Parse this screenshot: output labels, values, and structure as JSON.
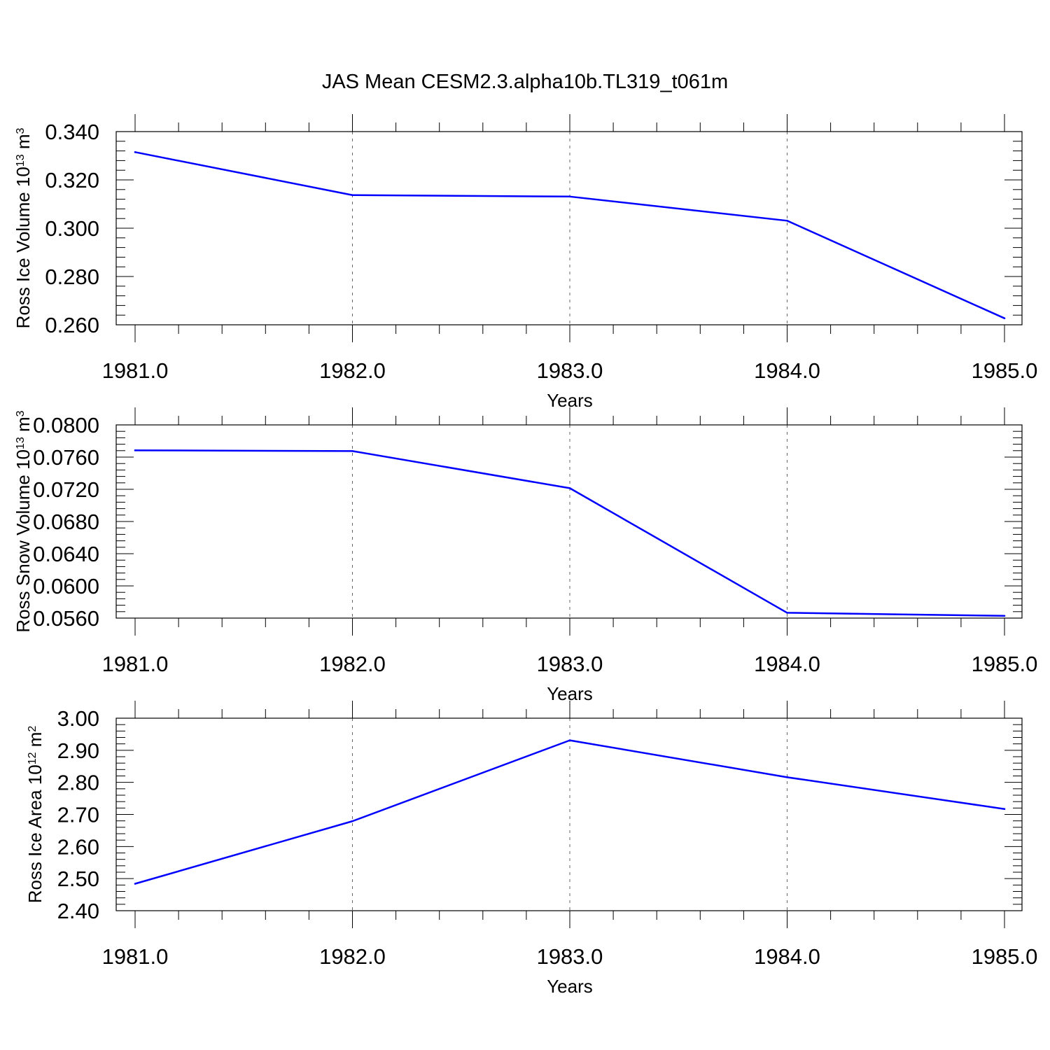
{
  "figure": {
    "title": "JAS Mean CESM2.3.alpha10b.TL319_t061m"
  },
  "chart_data": [
    {
      "type": "line",
      "title": "",
      "xlabel": "Years",
      "ylabel": {
        "main": "Ross Ice Volume 10",
        "exp": "13",
        "unit": " m",
        "unit_exp": "3"
      },
      "xlim": [
        1981.0,
        1985.0
      ],
      "x_ticks": [
        1981.0,
        1982.0,
        1983.0,
        1984.0,
        1985.0
      ],
      "x_ticklabels": [
        "1981.0",
        "1982.0",
        "1983.0",
        "1984.0",
        "1985.0"
      ],
      "ylim": [
        0.26,
        0.34
      ],
      "y_ticks": [
        0.26,
        0.28,
        0.3,
        0.32,
        0.34
      ],
      "y_ticklabels": [
        "0.260",
        "0.280",
        "0.300",
        "0.320",
        "0.340"
      ],
      "grid": "vertical dashed at major x ticks",
      "x": [
        1981.0,
        1982.0,
        1983.0,
        1984.0,
        1985.0
      ],
      "series": [
        {
          "color": "#0000ff",
          "values": [
            0.3315,
            0.3137,
            0.3131,
            0.3031,
            0.2627
          ]
        }
      ]
    },
    {
      "type": "line",
      "title": "",
      "xlabel": "Years",
      "ylabel": {
        "main": "Ross Snow Volume 10",
        "exp": "13",
        "unit": " m",
        "unit_exp": "3"
      },
      "xlim": [
        1981.0,
        1985.0
      ],
      "x_ticks": [
        1981.0,
        1982.0,
        1983.0,
        1984.0,
        1985.0
      ],
      "x_ticklabels": [
        "1981.0",
        "1982.0",
        "1983.0",
        "1984.0",
        "1985.0"
      ],
      "ylim": [
        0.056,
        0.08
      ],
      "y_ticks": [
        0.056,
        0.06,
        0.064,
        0.068,
        0.072,
        0.076,
        0.08
      ],
      "y_ticklabels": [
        "0.0560",
        "0.0600",
        "0.0640",
        "0.0680",
        "0.0720",
        "0.0760",
        "0.0800"
      ],
      "grid": "vertical dashed at major x ticks",
      "x": [
        1981.0,
        1982.0,
        1983.0,
        1984.0,
        1985.0
      ],
      "series": [
        {
          "color": "#0000ff",
          "values": [
            0.07684,
            0.07675,
            0.07214,
            0.05666,
            0.05628
          ]
        }
      ]
    },
    {
      "type": "line",
      "title": "",
      "xlabel": "Years",
      "ylabel": {
        "main": "Ross Ice Area 10",
        "exp": "12",
        "unit": " m",
        "unit_exp": "2"
      },
      "xlim": [
        1981.0,
        1985.0
      ],
      "x_ticks": [
        1981.0,
        1982.0,
        1983.0,
        1984.0,
        1985.0
      ],
      "x_ticklabels": [
        "1981.0",
        "1982.0",
        "1983.0",
        "1984.0",
        "1985.0"
      ],
      "ylim": [
        2.4,
        3.0
      ],
      "y_ticks": [
        2.4,
        2.5,
        2.6,
        2.7,
        2.8,
        2.9,
        3.0
      ],
      "y_ticklabels": [
        "2.40",
        "2.50",
        "2.60",
        "2.70",
        "2.80",
        "2.90",
        "3.00"
      ],
      "grid": "vertical dashed at major x ticks",
      "x": [
        1981.0,
        1982.0,
        1983.0,
        1984.0,
        1985.0
      ],
      "series": [
        {
          "color": "#0000ff",
          "values": [
            2.484,
            2.679,
            2.931,
            2.816,
            2.717
          ]
        }
      ]
    }
  ]
}
